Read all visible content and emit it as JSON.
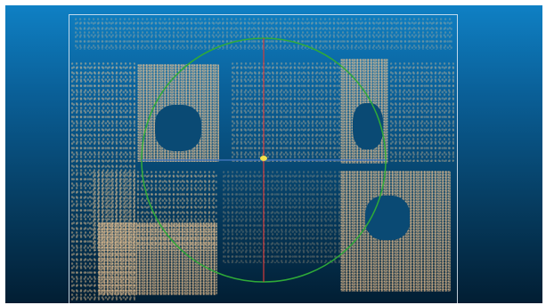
{
  "viewer": {
    "background_top": "#0f80c4",
    "background_bottom": "#021e33",
    "bounding_box_color": "#e1ebf5",
    "pivot_sphere_color": "#2faa38",
    "axis_x_color": "#3d72b8",
    "axis_y_color": "#d23b3b",
    "pivot_point_color": "#f2e14a",
    "point_color": "#e6bf8c",
    "icons": [
      "trackball-sphere-icon",
      "pivot-point-icon"
    ]
  }
}
